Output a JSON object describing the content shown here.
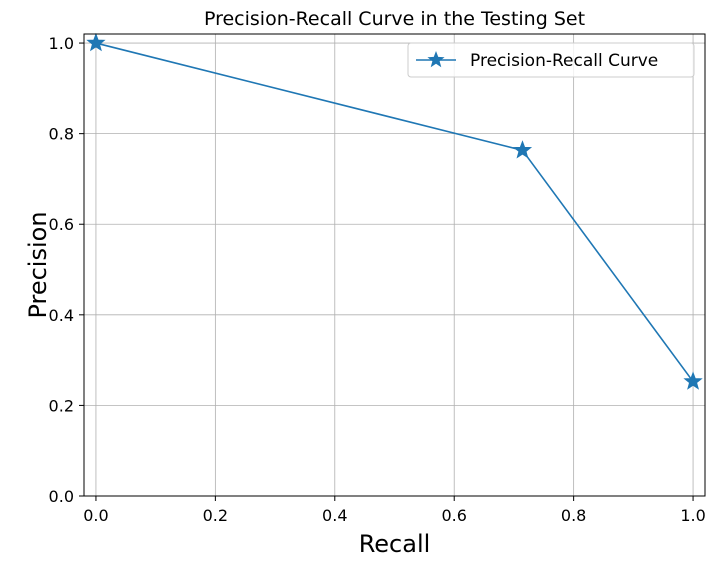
{
  "chart_data": {
    "type": "line",
    "title": "Precision-Recall Curve in the Testing Set",
    "xlabel": "Recall",
    "ylabel": "Precision",
    "xlim": [
      -0.02,
      1.02
    ],
    "ylim": [
      0.0,
      1.02
    ],
    "xticks": [
      0.0,
      0.2,
      0.4,
      0.6,
      0.8,
      1.0
    ],
    "xtick_labels": [
      "0.0",
      "0.2",
      "0.4",
      "0.6",
      "0.8",
      "1.0"
    ],
    "yticks": [
      0.0,
      0.2,
      0.4,
      0.6,
      0.8,
      1.0
    ],
    "ytick_labels": [
      "0.0",
      "0.2",
      "0.4",
      "0.6",
      "0.8",
      "1.0"
    ],
    "grid": true,
    "legend_position": "top-right",
    "series": [
      {
        "name": "Precision-Recall Curve",
        "color": "#1f77b4",
        "marker": "star",
        "x": [
          0.0,
          0.7143,
          1.0
        ],
        "y": [
          1.0,
          0.7632,
          0.2527
        ]
      }
    ]
  }
}
